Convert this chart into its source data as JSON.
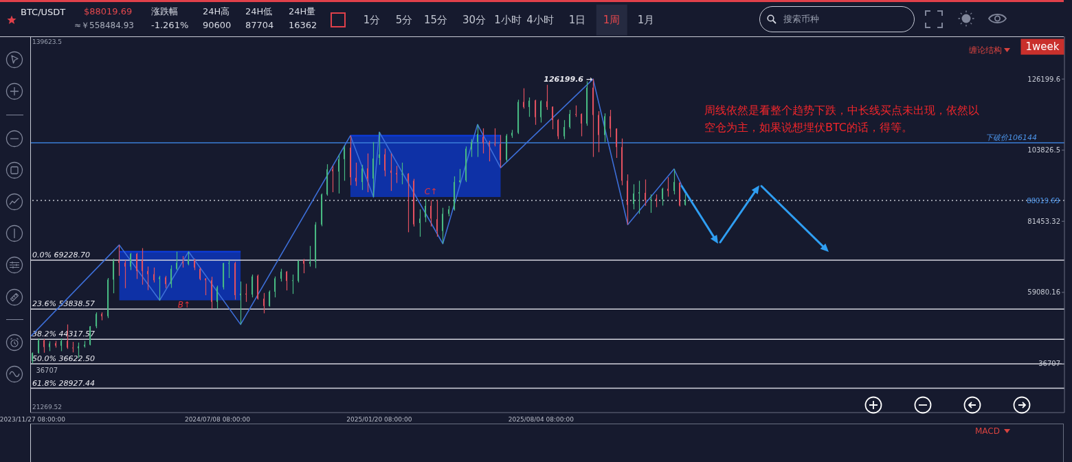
{
  "chart_data": {
    "type": "candlestick",
    "title": "BTC/USDT",
    "x": [
      "2023-11-27T08:00",
      "2023-12-04T08:00",
      "2023-12-11T08:00",
      "2023-12-18T08:00",
      "2023-12-25T08:00",
      "2024-01-01T08:00",
      "2024-01-08T08:00",
      "2024-01-15T08:00",
      "2024-01-22T08:00",
      "2024-01-29T08:00",
      "2024-02-05T08:00",
      "2024-02-12T08:00",
      "2024-02-19T08:00",
      "2024-02-26T08:00",
      "2024-03-04T08:00",
      "2024-03-11T08:00",
      "2024-03-18T08:00",
      "2024-03-25T08:00",
      "2024-04-01T08:00",
      "2024-04-08T08:00",
      "2024-04-15T08:00",
      "2024-04-22T08:00",
      "2024-04-29T08:00",
      "2024-05-06T08:00",
      "2024-05-13T08:00",
      "2024-05-20T08:00",
      "2024-05-27T08:00",
      "2024-06-03T08:00",
      "2024-06-10T08:00",
      "2024-06-17T08:00",
      "2024-06-24T08:00",
      "2024-07-01T08:00",
      "2024-07-08T08:00",
      "2024-07-15T08:00",
      "2024-07-22T08:00",
      "2024-07-29T08:00",
      "2024-08-05T08:00",
      "2024-08-12T08:00",
      "2024-08-19T08:00",
      "2024-08-26T08:00",
      "2024-09-02T08:00",
      "2024-09-09T08:00",
      "2024-09-16T08:00",
      "2024-09-23T08:00",
      "2024-09-30T08:00",
      "2024-10-07T08:00",
      "2024-10-14T08:00",
      "2024-10-21T08:00",
      "2024-10-28T08:00",
      "2024-11-04T08:00",
      "2024-11-11T08:00",
      "2024-11-18T08:00",
      "2024-11-25T08:00",
      "2024-12-02T08:00",
      "2024-12-09T08:00",
      "2024-12-16T08:00",
      "2024-12-23T08:00",
      "2024-12-30T08:00",
      "2025-01-06T08:00",
      "2025-01-13T08:00",
      "2025-01-20T08:00",
      "2025-01-27T08:00",
      "2025-02-03T08:00",
      "2025-02-10T08:00",
      "2025-02-17T08:00",
      "2025-02-24T08:00",
      "2025-03-03T08:00",
      "2025-03-10T08:00",
      "2025-03-17T08:00",
      "2025-03-24T08:00",
      "2025-03-31T08:00",
      "2025-04-07T08:00",
      "2025-04-14T08:00",
      "2025-04-21T08:00",
      "2025-04-28T08:00",
      "2025-05-05T08:00",
      "2025-05-12T08:00",
      "2025-05-19T08:00",
      "2025-05-26T08:00",
      "2025-06-02T08:00",
      "2025-06-09T08:00",
      "2025-06-16T08:00",
      "2025-06-23T08:00",
      "2025-06-30T08:00",
      "2025-07-07T08:00",
      "2025-07-14T08:00",
      "2025-07-21T08:00",
      "2025-07-28T08:00",
      "2025-08-04T08:00",
      "2025-08-11T08:00",
      "2025-08-18T08:00",
      "2025-08-25T08:00",
      "2025-09-01T08:00",
      "2025-09-08T08:00",
      "2025-09-15T08:00",
      "2025-09-22T08:00",
      "2025-09-29T08:00",
      "2025-10-06T08:00",
      "2025-10-13T08:00",
      "2025-10-20T08:00",
      "2025-10-27T08:00",
      "2025-11-03T08:00",
      "2025-11-10T08:00",
      "2025-11-17T08:00",
      "2025-11-24T08:00",
      "2025-12-01T08:00",
      "2025-12-08T08:00",
      "2025-12-15T08:00",
      "2025-12-22T08:00",
      "2025-12-29T08:00",
      "2026-01-05T08:00",
      "2026-01-12T08:00",
      "2026-01-19T08:00",
      "2026-01-26T08:00"
    ],
    "ohlc": [
      [
        37500,
        40200,
        36707,
        40000
      ],
      [
        40000,
        44600,
        39800,
        44000
      ],
      [
        44000,
        44400,
        40100,
        41900
      ],
      [
        41900,
        43700,
        40600,
        43000
      ],
      [
        43100,
        43800,
        41700,
        42300
      ],
      [
        42300,
        44600,
        40600,
        43800
      ],
      [
        43800,
        49000,
        41300,
        41700
      ],
      [
        41700,
        43500,
        40200,
        41500
      ],
      [
        41500,
        43300,
        38400,
        42100
      ],
      [
        42100,
        43800,
        41700,
        42600
      ],
      [
        42600,
        48500,
        42400,
        48400
      ],
      [
        48400,
        52800,
        47800,
        52300
      ],
      [
        52300,
        52800,
        50300,
        51600
      ],
      [
        51600,
        63600,
        51000,
        63100
      ],
      [
        63100,
        69700,
        58800,
        69000
      ],
      [
        69000,
        74000,
        64300,
        68400
      ],
      [
        68400,
        69200,
        60400,
        67200
      ],
      [
        67200,
        71500,
        66100,
        71200
      ],
      [
        71200,
        71500,
        63300,
        65800
      ],
      [
        69200,
        73000,
        61500,
        65800
      ],
      [
        65800,
        67200,
        59800,
        64800
      ],
      [
        64800,
        66900,
        62200,
        62900
      ],
      [
        63300,
        64300,
        56600,
        63800
      ],
      [
        63800,
        64300,
        60400,
        61700
      ],
      [
        61700,
        67600,
        60500,
        66500
      ],
      [
        66500,
        71900,
        66100,
        68400
      ],
      [
        68700,
        70500,
        66900,
        68300
      ],
      [
        68000,
        71900,
        67600,
        69400
      ],
      [
        69200,
        69700,
        66100,
        66900
      ],
      [
        66500,
        66900,
        62900,
        63300
      ],
      [
        63400,
        63600,
        58200,
        62900
      ],
      [
        62900,
        64000,
        53900,
        56100
      ],
      [
        56100,
        61200,
        53900,
        60700
      ],
      [
        60700,
        68400,
        60000,
        68300
      ],
      [
        68200,
        69200,
        63600,
        68300
      ],
      [
        68300,
        68700,
        56800,
        58200
      ],
      [
        58200,
        62500,
        49000,
        58700
      ],
      [
        58700,
        61800,
        56100,
        58400
      ],
      [
        58400,
        64700,
        57500,
        64100
      ],
      [
        64300,
        64700,
        56800,
        57100
      ],
      [
        57100,
        58900,
        52500,
        54800
      ],
      [
        54800,
        59700,
        54600,
        59300
      ],
      [
        59300,
        64100,
        57500,
        63500
      ],
      [
        63400,
        66500,
        62500,
        65600
      ],
      [
        65600,
        65800,
        59700,
        62700
      ],
      [
        62700,
        64700,
        58600,
        62900
      ],
      [
        62700,
        69200,
        62200,
        69000
      ],
      [
        69200,
        69600,
        65100,
        68100
      ],
      [
        68100,
        73700,
        67200,
        68700
      ],
      [
        68700,
        81200,
        66700,
        80400
      ],
      [
        80400,
        90200,
        79900,
        89900
      ],
      [
        89900,
        99400,
        89500,
        97800
      ],
      [
        97800,
        98900,
        90600,
        97200
      ],
      [
        97100,
        102500,
        90200,
        101000
      ],
      [
        101000,
        105300,
        94200,
        104600
      ],
      [
        104600,
        108400,
        92800,
        95300
      ],
      [
        95100,
        99900,
        92600,
        94000
      ],
      [
        93800,
        99200,
        91300,
        98100
      ],
      [
        98100,
        102800,
        90600,
        94900
      ],
      [
        94900,
        106400,
        89100,
        101200
      ],
      [
        101400,
        109500,
        99200,
        102500
      ],
      [
        102500,
        104300,
        95600,
        97400
      ],
      [
        97400,
        102800,
        91000,
        96700
      ],
      [
        96600,
        98900,
        93500,
        96200
      ],
      [
        96200,
        99900,
        93100,
        96400
      ],
      [
        96400,
        96600,
        78000,
        94200
      ],
      [
        94200,
        94800,
        79800,
        80500
      ],
      [
        80900,
        85200,
        76600,
        82300
      ],
      [
        82700,
        88400,
        81200,
        86300
      ],
      [
        86300,
        88100,
        79800,
        82300
      ],
      [
        82100,
        88100,
        76600,
        78400
      ],
      [
        78400,
        85700,
        74400,
        83800
      ],
      [
        83800,
        86300,
        83000,
        85200
      ],
      [
        85200,
        95600,
        84800,
        93800
      ],
      [
        93800,
        97900,
        93500,
        94300
      ],
      [
        94300,
        105000,
        93800,
        104300
      ],
      [
        104100,
        107300,
        101700,
        106400
      ],
      [
        106400,
        111900,
        101700,
        108900
      ],
      [
        108000,
        110700,
        102800,
        106100
      ],
      [
        106100,
        106800,
        100300,
        105700
      ],
      [
        105800,
        110700,
        105000,
        105600
      ],
      [
        105700,
        108600,
        98300,
        100700
      ],
      [
        100800,
        108900,
        100100,
        108400
      ],
      [
        108400,
        110200,
        107700,
        109300
      ],
      [
        109300,
        119700,
        108900,
        119000
      ],
      [
        119000,
        123300,
        116900,
        117400
      ],
      [
        117400,
        120400,
        114300,
        119400
      ],
      [
        119500,
        119700,
        111800,
        114200
      ],
      [
        114200,
        119500,
        112500,
        119200
      ],
      [
        119200,
        124400,
        116500,
        117400
      ],
      [
        117500,
        117600,
        110400,
        113300
      ],
      [
        113300,
        113600,
        107300,
        108200
      ],
      [
        108200,
        113300,
        107300,
        111100
      ],
      [
        111100,
        116500,
        110600,
        115200
      ],
      [
        115200,
        117900,
        114300,
        115100
      ],
      [
        115200,
        115400,
        108200,
        112200
      ],
      [
        112200,
        125500,
        111500,
        123500
      ],
      [
        123500,
        126199.6,
        101700,
        114900
      ],
      [
        114900,
        116100,
        103200,
        108600
      ],
      [
        108600,
        115400,
        106400,
        114500
      ],
      [
        114500,
        116500,
        107900,
        110600
      ],
      [
        110600,
        110700,
        101400,
        104800
      ],
      [
        104800,
        107500,
        92800,
        94200
      ],
      [
        94200,
        96200,
        80400,
        86600
      ],
      [
        86900,
        93100,
        85200,
        90200
      ],
      [
        90200,
        94200,
        83800,
        90600
      ],
      [
        90400,
        94600,
        86300,
        88100
      ],
      [
        88100,
        89900,
        84100,
        88400
      ],
      [
        88600,
        89900,
        85900,
        88100
      ],
      [
        88400,
        92000,
        86400,
        91700
      ],
      [
        91700,
        95300,
        89200,
        91000
      ],
      [
        91000,
        97900,
        89900,
        93800
      ],
      [
        93600,
        93800,
        86100,
        86400
      ],
      [
        86600,
        90000,
        86400,
        88019.69
      ]
    ],
    "colors": [
      "#48b982",
      "#48b982",
      "#e1505f",
      "#48b982",
      "#e1505f",
      "#48b982",
      "#e1505f",
      "#e1505f",
      "#48b982",
      "#48b982",
      "#48b982",
      "#48b982",
      "#e1505f",
      "#48b982",
      "#48b982",
      "#e1505f",
      "#e1505f",
      "#48b982",
      "#e1505f",
      "#e1505f",
      "#e1505f",
      "#e1505f",
      "#48b982",
      "#e1505f",
      "#48b982",
      "#48b982",
      "#e1505f",
      "#48b982",
      "#e1505f",
      "#e1505f",
      "#e1505f",
      "#e1505f",
      "#48b982",
      "#48b982",
      "#48b982",
      "#e1505f",
      "#48b982",
      "#e1505f",
      "#48b982",
      "#e1505f",
      "#e1505f",
      "#48b982",
      "#48b982",
      "#48b982",
      "#e1505f",
      "#48b982",
      "#48b982",
      "#e1505f",
      "#48b982",
      "#48b982",
      "#48b982",
      "#48b982",
      "#e1505f",
      "#48b982",
      "#48b982",
      "#e1505f",
      "#e1505f",
      "#48b982",
      "#e1505f",
      "#48b982",
      "#48b982",
      "#e1505f",
      "#e1505f",
      "#e1505f",
      "#48b982",
      "#e1505f",
      "#e1505f",
      "#48b982",
      "#48b982",
      "#e1505f",
      "#e1505f",
      "#48b982",
      "#48b982",
      "#48b982",
      "#48b982",
      "#48b982",
      "#48b982",
      "#48b982",
      "#e1505f",
      "#e1505f",
      "#e1505f",
      "#e1505f",
      "#48b982",
      "#48b982",
      "#48b982",
      "#e1505f",
      "#48b982",
      "#e1505f",
      "#48b982",
      "#e1505f",
      "#e1505f",
      "#e1505f",
      "#48b982",
      "#48b982",
      "#e1505f",
      "#e1505f",
      "#48b982",
      "#e1505f",
      "#e1505f",
      "#48b982",
      "#e1505f",
      "#e1505f",
      "#e1505f",
      "#e1505f",
      "#48b982",
      "#48b982",
      "#e1505f",
      "#48b982",
      "#e1505f",
      "#48b982",
      "#e1505f",
      "#48b982",
      "#e1505f",
      "#48b982"
    ],
    "series": [
      {
        "type": "line",
        "color": "#0a3de6",
        "x": [
          "2024-03-11T08:00",
          "2024-08-05T08:00"
        ],
        "values": [
          71900,
          71900
        ],
        "lower": [
          56600,
          56600
        ],
        "upper": [
          71900,
          71900
        ]
      },
      {
        "type": "line",
        "color": "#0a3de6",
        "x": [
          "2024-12-16T08:00",
          "2025-06-16T08:00"
        ],
        "values": [
          108400,
          108400
        ],
        "lower": [
          89100,
          89100
        ],
        "upper": [
          108400,
          108400
        ]
      },
      {
        "type": "line",
        "color": "#3d6fd9",
        "x": [
          "2023-11-25T08:00",
          "2024-03-11T08:00",
          "2024-04-29T08:00",
          "2024-06-03T08:00",
          "2024-08-05T08:00",
          "2024-12-16T08:00",
          "2025-01-13T08:00",
          "2025-01-20T08:00",
          "2025-04-07T08:00",
          "2025-05-19T08:00",
          "2025-06-16T08:00",
          "2025-10-06T08:00",
          "2025-11-17T08:00",
          "2026-01-12T08:00",
          "2026-01-26T08:00"
        ],
        "values": [
          45300,
          74000,
          56600,
          71900,
          49000,
          108400,
          89100,
          109500,
          74400,
          111900,
          98300,
          126199.6,
          80400,
          97900,
          90200
        ]
      }
    ],
    "xlim": [
      "2023-11-25T08:00",
      "2027-04-30T08:00"
    ],
    "xticks": [
      {
        "value": "2023-11-27T08:00",
        "label": "2023/11/27 08:00:00"
      },
      {
        "value": "2024-07-08T08:00",
        "label": "2024/07/08 08:00:00"
      },
      {
        "value": "2025-01-20T08:00",
        "label": "2025/01/20 08:00:00"
      },
      {
        "value": "2025-08-04T08:00",
        "label": "2025/08/04 08:00:00"
      }
    ],
    "ylim": [
      21269.52,
      139623.5
    ],
    "yticks": [
      36707,
      59080.16,
      81453.32,
      103826.5,
      126199.6
    ],
    "ref_lines": [
      {
        "axis": "y",
        "value": 106144,
        "label": "下破价106144",
        "color": "#3b7fd9"
      },
      {
        "axis": "y",
        "value": 88019.69,
        "label": "88019.69",
        "color": "#c4c6d0",
        "line_style": "dotted"
      },
      {
        "axis": "y",
        "value": 69228.7,
        "label": "0.0% 69228.70",
        "color": "#d4d5de"
      },
      {
        "axis": "y",
        "value": 53838.57,
        "label": "23.6% 53838.57",
        "color": "#d4d5de"
      },
      {
        "axis": "y",
        "value": 44317.57,
        "label": "38.2% 44317.57",
        "color": "#d4d5de"
      },
      {
        "axis": "y",
        "value": 36622.5,
        "label": "50.0% 36622.50",
        "color": "#d4d5de"
      },
      {
        "axis": "y",
        "value": 28927.44,
        "label": "61.8% 28927.44",
        "color": "#d4d5de"
      }
    ],
    "annotations": [
      "$88019.69",
      "≈￥558484.93",
      "涨跌幅",
      "-1.261%",
      "24H高",
      "90600",
      "24H低",
      "87704",
      "24H量",
      "16362",
      "1分",
      "5分",
      "15分",
      "30分",
      "1小时",
      "4小时",
      "1日",
      "1周",
      "1月",
      "搜索币种",
      "缠论结构",
      "1week",
      "MACD",
      "周线依然是看整个趋势下跌，中长线买点未出现，依然以空仓为主，如果说想埋伏BTC的话，得等。",
      "B↑",
      "139623.5",
      "21269.52",
      "C↑",
      {
        "text": "126199.6 →",
        "x": "2025-10-06T08:00",
        "y": 126199.6
      },
      {
        "text": "36707",
        "x": "2023-11-27T08:00",
        "y": 36707
      }
    ]
  }
}
